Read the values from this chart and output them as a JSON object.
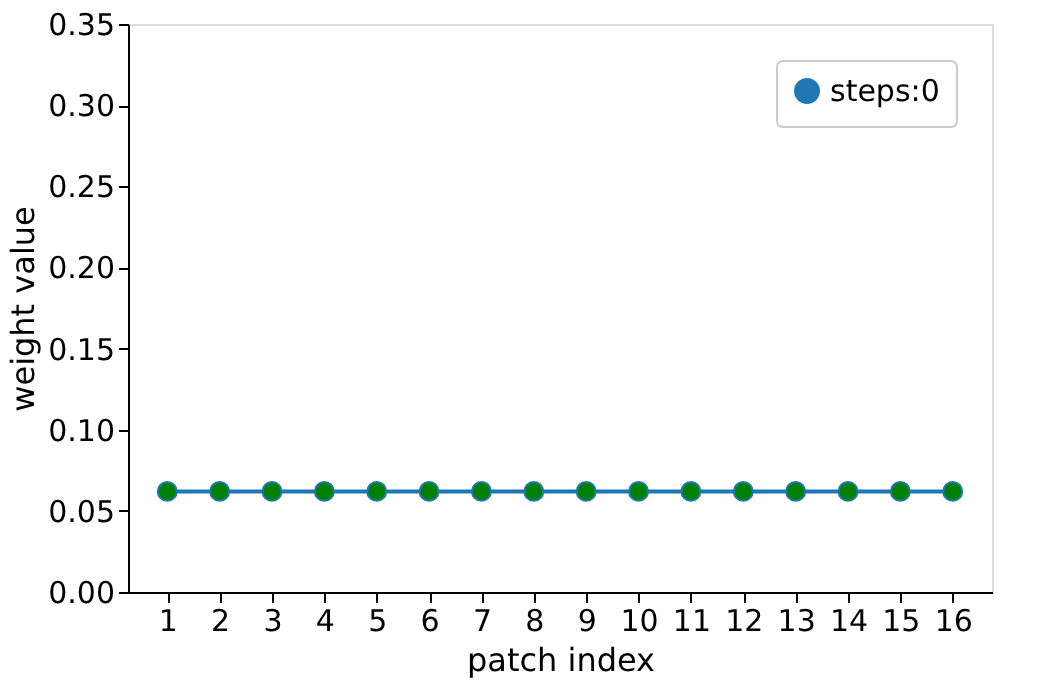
{
  "chart_data": {
    "type": "line",
    "xlabel": "patch index",
    "ylabel": "weight value",
    "x": [
      1,
      2,
      3,
      4,
      5,
      6,
      7,
      8,
      9,
      10,
      11,
      12,
      13,
      14,
      15,
      16
    ],
    "series": [
      {
        "name": "steps:0",
        "color": "#1f77b4",
        "values": [
          0.062,
          0.062,
          0.062,
          0.062,
          0.062,
          0.062,
          0.062,
          0.062,
          0.062,
          0.062,
          0.062,
          0.062,
          0.062,
          0.062,
          0.062,
          0.062
        ]
      }
    ],
    "xlim": [
      0.25,
      16.75
    ],
    "xticks": [
      1,
      2,
      3,
      4,
      5,
      6,
      7,
      8,
      9,
      10,
      11,
      12,
      13,
      14,
      15,
      16
    ],
    "ylim": [
      0,
      0.35
    ],
    "yticks": [
      {
        "value": 0,
        "label": "0.00"
      },
      0.05,
      {
        "value": 0.1,
        "label": "0.10"
      },
      0.15,
      {
        "value": 0.2,
        "label": "0.20"
      },
      0.25,
      {
        "value": 0.3,
        "label": "0.30"
      },
      0.35
    ],
    "grid": false,
    "legend": "top right",
    "marker": "circle",
    "line_style": "solid"
  }
}
